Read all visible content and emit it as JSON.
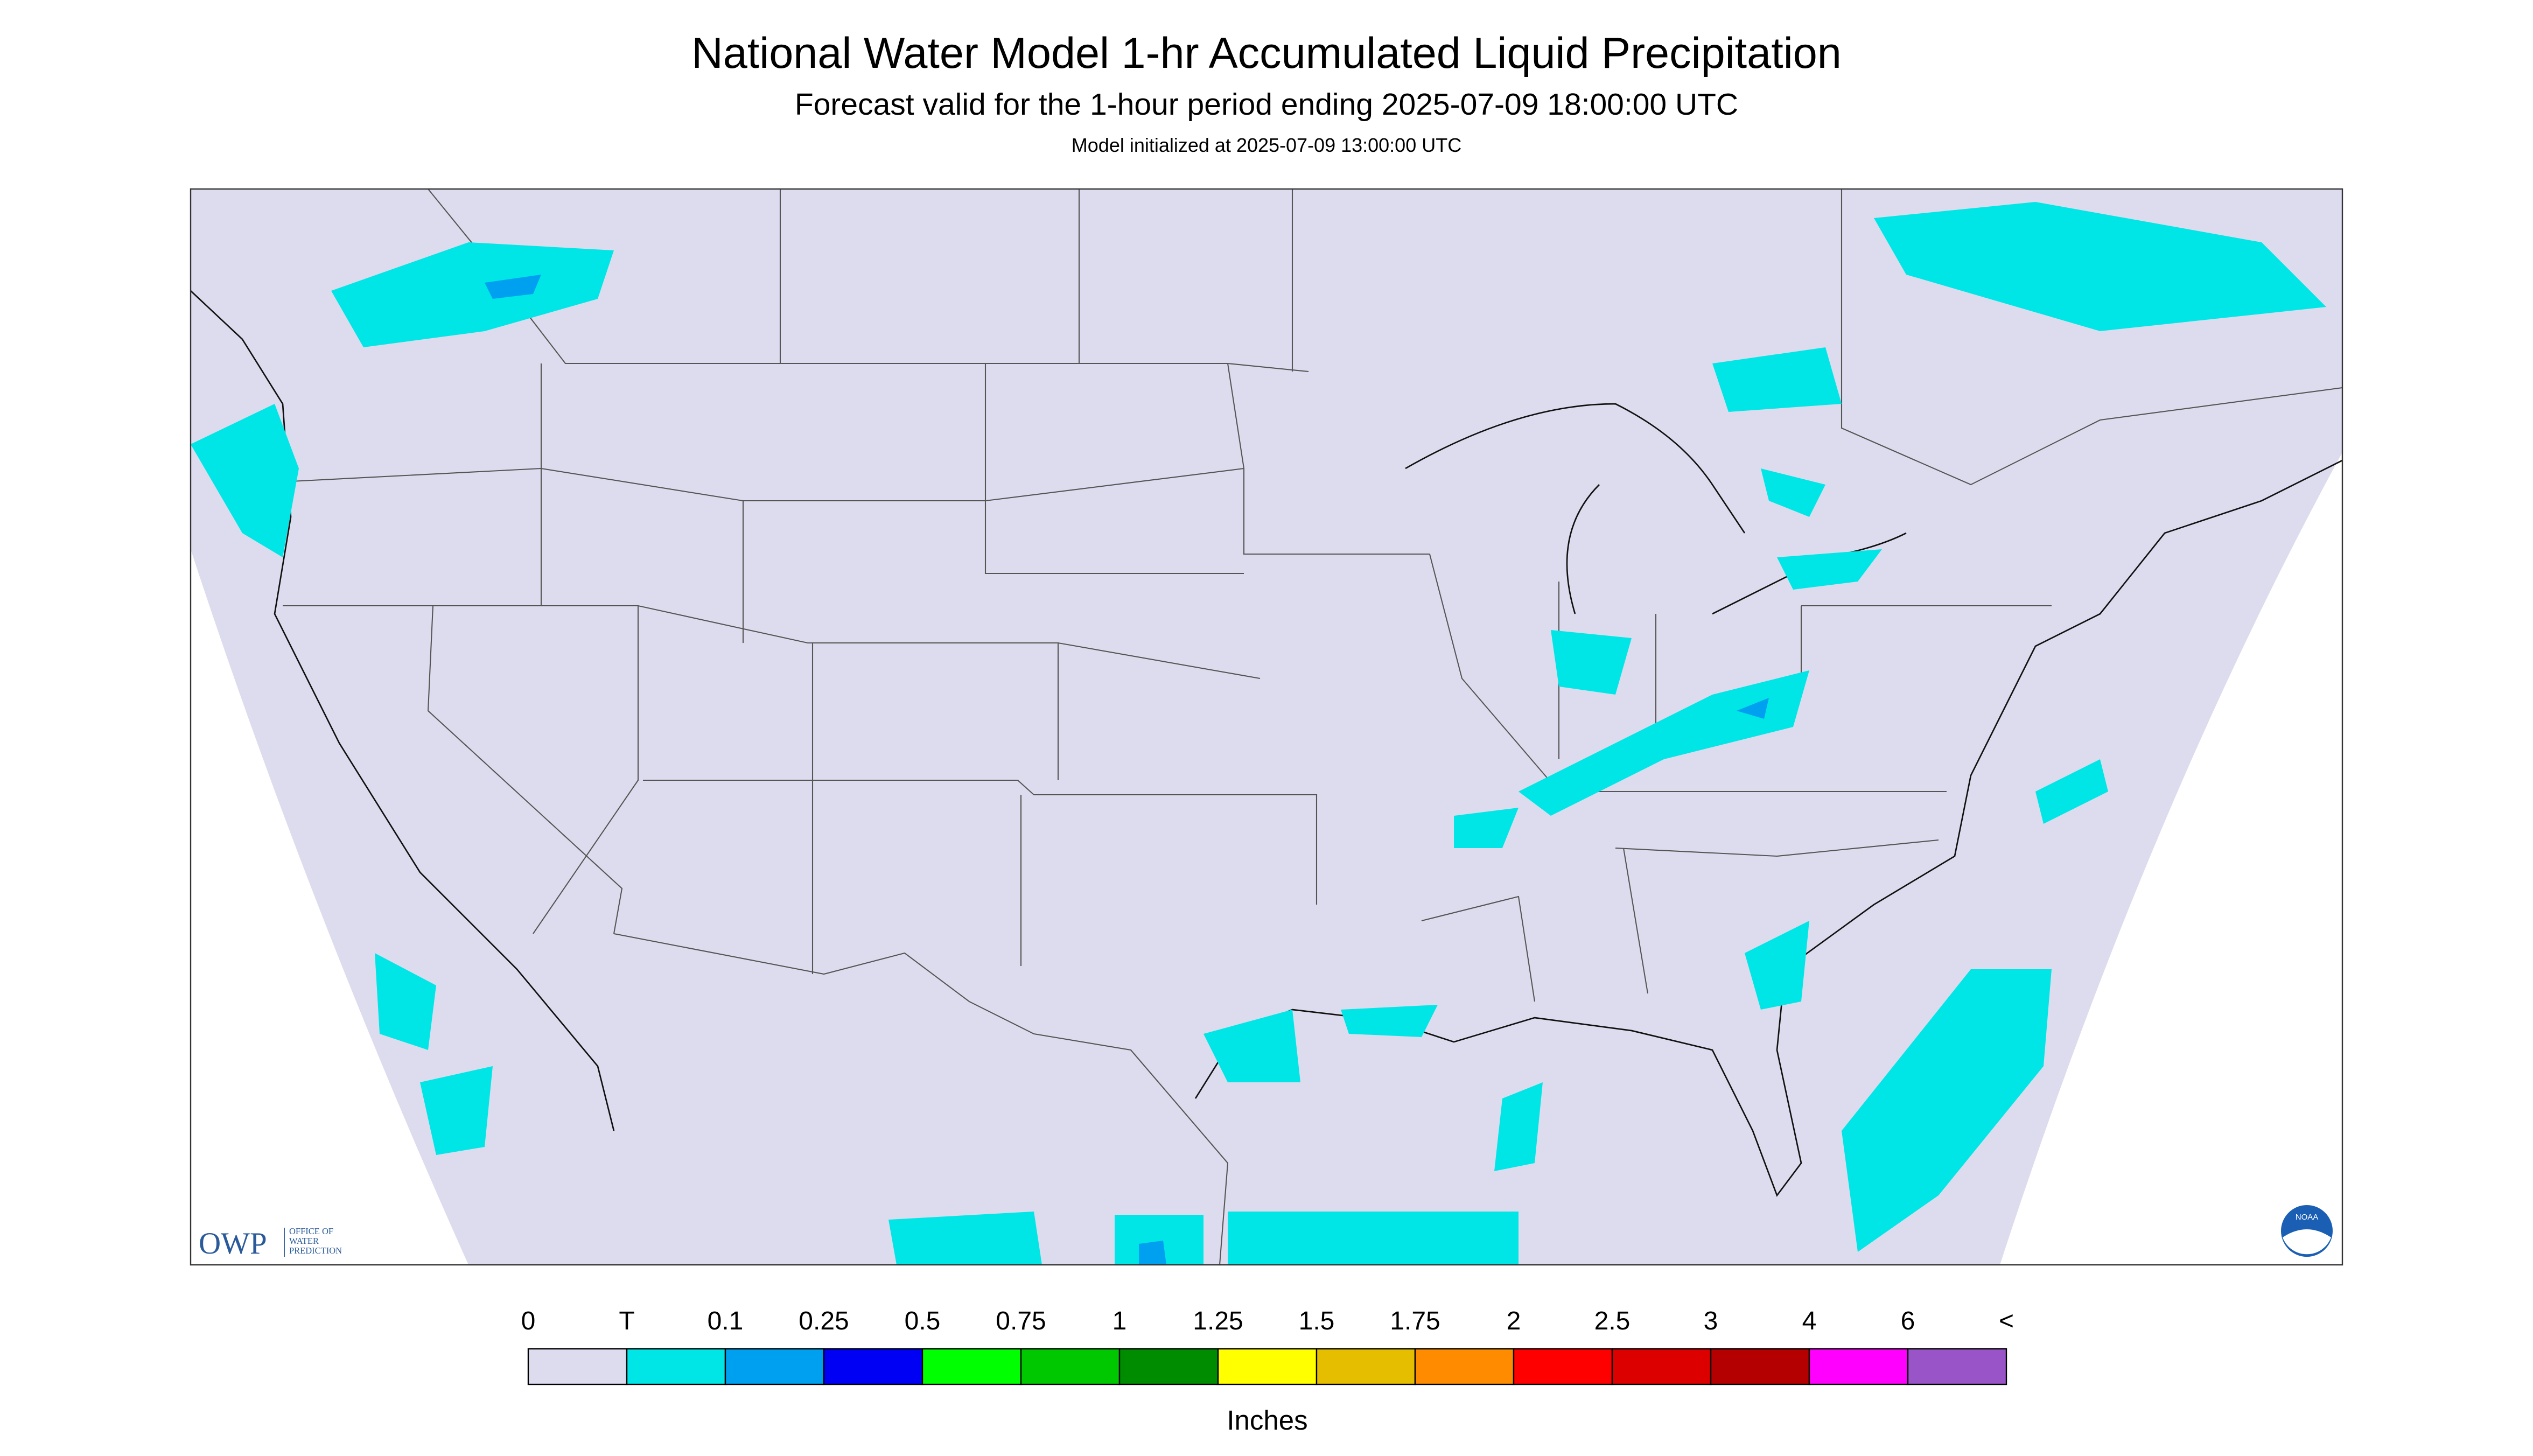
{
  "header": {
    "title": "National Water Model 1-hr Accumulated Liquid Precipitation",
    "subtitle": "Forecast valid for the 1-hour period ending 2025-07-09 18:00:00 UTC",
    "note": "Model initialized at 2025-07-09 13:00:00 UTC"
  },
  "logos": {
    "owp": "OWP",
    "owp_name": [
      "OFFICE OF",
      "WATER",
      "PREDICTION"
    ],
    "noaa": "NOAA"
  },
  "legend": {
    "labels": [
      "0",
      "T",
      "0.1",
      "0.25",
      "0.5",
      "0.75",
      "1",
      "1.25",
      "1.5",
      "1.75",
      "2",
      "2.5",
      "3",
      "4",
      "6",
      "<"
    ],
    "colors": [
      "#dcdcee",
      "#00e6e6",
      "#00a0f0",
      "#0000f5",
      "#00ff00",
      "#00c800",
      "#008c00",
      "#ffff00",
      "#e6be00",
      "#ff8c00",
      "#ff0000",
      "#dc0000",
      "#b40000",
      "#ff00ff",
      "#9955c8"
    ],
    "unit": "Inches"
  }
}
